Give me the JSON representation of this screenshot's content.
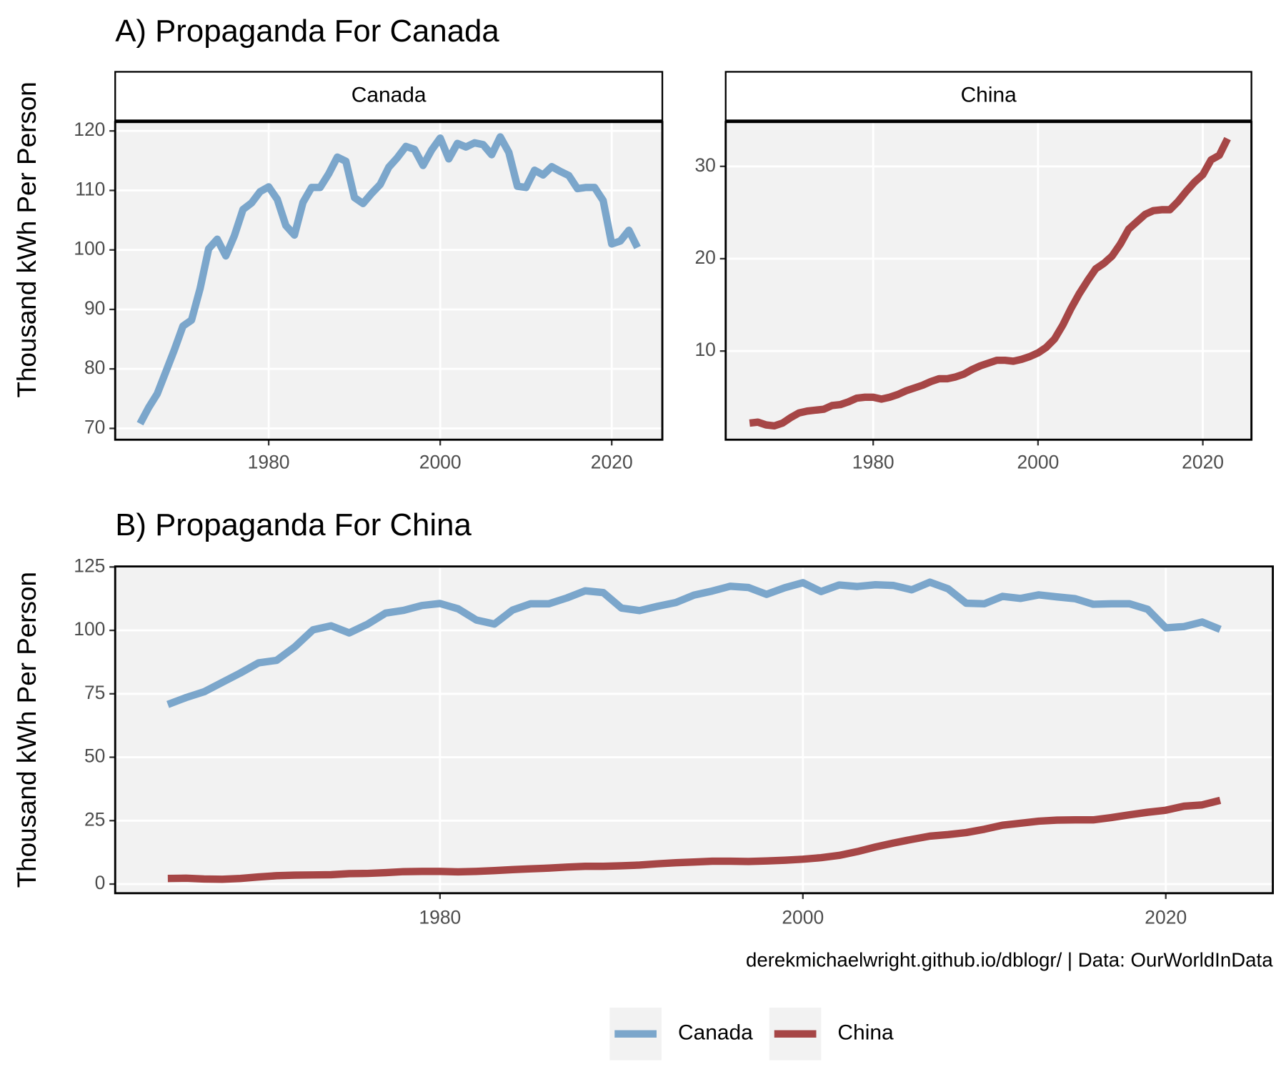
{
  "chart_data": [
    {
      "type": "line",
      "title": "A) Propaganda For Canada",
      "ylabel": "Thousand kWh Per Person",
      "x": [
        1965,
        1966,
        1967,
        1968,
        1969,
        1970,
        1971,
        1972,
        1973,
        1974,
        1975,
        1976,
        1977,
        1978,
        1979,
        1980,
        1981,
        1982,
        1983,
        1984,
        1985,
        1986,
        1987,
        1988,
        1989,
        1990,
        1991,
        1992,
        1993,
        1994,
        1995,
        1996,
        1997,
        1998,
        1999,
        2000,
        2001,
        2002,
        2003,
        2004,
        2005,
        2006,
        2007,
        2008,
        2009,
        2010,
        2011,
        2012,
        2013,
        2014,
        2015,
        2016,
        2017,
        2018,
        2019,
        2020,
        2021,
        2022,
        2023
      ],
      "series": [
        {
          "name": "Canada",
          "color": "#7ba6cb",
          "values": [
            70.8,
            73.5,
            75.8,
            79.5,
            83.2,
            87.2,
            88.2,
            93.5,
            100.2,
            101.8,
            99.0,
            102.4,
            106.8,
            107.9,
            109.8,
            110.6,
            108.5,
            104.1,
            102.5,
            108.0,
            110.5,
            110.5,
            112.8,
            115.6,
            114.9,
            108.8,
            107.8,
            109.5,
            111.0,
            113.9,
            115.5,
            117.4,
            116.9,
            114.2,
            116.8,
            118.8,
            115.3,
            117.9,
            117.3,
            118.0,
            117.7,
            116.0,
            119.0,
            116.4,
            110.7,
            110.5,
            113.4,
            112.6,
            114.0,
            113.2,
            112.5,
            110.3,
            110.5,
            110.5,
            108.3,
            101.0,
            101.5,
            103.3,
            100.4
          ]
        }
      ],
      "xlim": [
        1962.1,
        2025.9
      ],
      "ylim": [
        68.1,
        121.5
      ],
      "xticks": [
        1980,
        2000,
        2020
      ],
      "yticks": [
        70,
        80,
        90,
        100,
        110,
        120
      ],
      "grid": true
    },
    {
      "type": "line",
      "x": [
        1965,
        1966,
        1967,
        1968,
        1969,
        1970,
        1971,
        1972,
        1973,
        1974,
        1975,
        1976,
        1977,
        1978,
        1979,
        1980,
        1981,
        1982,
        1983,
        1984,
        1985,
        1986,
        1987,
        1988,
        1989,
        1990,
        1991,
        1992,
        1993,
        1994,
        1995,
        1996,
        1997,
        1998,
        1999,
        2000,
        2001,
        2002,
        2003,
        2004,
        2005,
        2006,
        2007,
        2008,
        2009,
        2010,
        2011,
        2012,
        2013,
        2014,
        2015,
        2016,
        2017,
        2018,
        2019,
        2020,
        2021,
        2022,
        2023
      ],
      "series": [
        {
          "name": "China",
          "color": "#a64646",
          "values": [
            2.2,
            2.3,
            2.0,
            1.9,
            2.2,
            2.8,
            3.3,
            3.5,
            3.6,
            3.7,
            4.1,
            4.2,
            4.5,
            4.9,
            5.0,
            5.0,
            4.8,
            5.0,
            5.3,
            5.7,
            6.0,
            6.3,
            6.7,
            7.0,
            7.0,
            7.2,
            7.5,
            8.0,
            8.4,
            8.7,
            9.0,
            9.0,
            8.9,
            9.1,
            9.4,
            9.8,
            10.4,
            11.3,
            12.8,
            14.6,
            16.2,
            17.6,
            18.9,
            19.5,
            20.3,
            21.6,
            23.2,
            24.0,
            24.8,
            25.2,
            25.3,
            25.3,
            26.2,
            27.3,
            28.3,
            29.1,
            30.7,
            31.2,
            33.0
          ]
        }
      ],
      "xlim": [
        1962.1,
        2025.9
      ],
      "ylim": [
        0.4,
        34.8
      ],
      "xticks": [
        1980,
        2000,
        2020
      ],
      "yticks": [
        10,
        20,
        30
      ],
      "grid": true
    },
    {
      "type": "line",
      "title": "B) Propaganda For China",
      "ylabel": "Thousand kWh Per Person",
      "caption": "derekmichaelwright.github.io/dblogr/ | Data: OurWorldInData",
      "x": [
        1965,
        1966,
        1967,
        1968,
        1969,
        1970,
        1971,
        1972,
        1973,
        1974,
        1975,
        1976,
        1977,
        1978,
        1979,
        1980,
        1981,
        1982,
        1983,
        1984,
        1985,
        1986,
        1987,
        1988,
        1989,
        1990,
        1991,
        1992,
        1993,
        1994,
        1995,
        1996,
        1997,
        1998,
        1999,
        2000,
        2001,
        2002,
        2003,
        2004,
        2005,
        2006,
        2007,
        2008,
        2009,
        2010,
        2011,
        2012,
        2013,
        2014,
        2015,
        2016,
        2017,
        2018,
        2019,
        2020,
        2021,
        2022,
        2023
      ],
      "series": [
        {
          "name": "Canada",
          "color": "#7ba6cb",
          "values": [
            70.8,
            73.5,
            75.8,
            79.5,
            83.2,
            87.2,
            88.2,
            93.5,
            100.2,
            101.8,
            99.0,
            102.4,
            106.8,
            107.9,
            109.8,
            110.6,
            108.5,
            104.1,
            102.5,
            108.0,
            110.5,
            110.5,
            112.8,
            115.6,
            114.9,
            108.8,
            107.8,
            109.5,
            111.0,
            113.9,
            115.5,
            117.4,
            116.9,
            114.2,
            116.8,
            118.8,
            115.3,
            117.9,
            117.3,
            118.0,
            117.7,
            116.0,
            119.0,
            116.4,
            110.7,
            110.5,
            113.4,
            112.6,
            114.0,
            113.2,
            112.5,
            110.3,
            110.5,
            110.5,
            108.3,
            101.0,
            101.5,
            103.3,
            100.4
          ]
        },
        {
          "name": "China",
          "color": "#a64646",
          "values": [
            2.2,
            2.3,
            2.0,
            1.9,
            2.2,
            2.8,
            3.3,
            3.5,
            3.6,
            3.7,
            4.1,
            4.2,
            4.5,
            4.9,
            5.0,
            5.0,
            4.8,
            5.0,
            5.3,
            5.7,
            6.0,
            6.3,
            6.7,
            7.0,
            7.0,
            7.2,
            7.5,
            8.0,
            8.4,
            8.7,
            9.0,
            9.0,
            8.9,
            9.1,
            9.4,
            9.8,
            10.4,
            11.3,
            12.8,
            14.6,
            16.2,
            17.6,
            18.9,
            19.5,
            20.3,
            21.6,
            23.2,
            24.0,
            24.8,
            25.2,
            25.3,
            25.3,
            26.2,
            27.3,
            28.3,
            29.1,
            30.7,
            31.2,
            33.0
          ]
        }
      ],
      "xlim": [
        1962.1,
        2025.9
      ],
      "ylim": [
        -3.6,
        125.2
      ],
      "xticks": [
        1980,
        2000,
        2020
      ],
      "yticks": [
        0,
        25,
        50,
        75,
        100,
        125
      ],
      "grid": true,
      "legend": "bottom"
    }
  ]
}
